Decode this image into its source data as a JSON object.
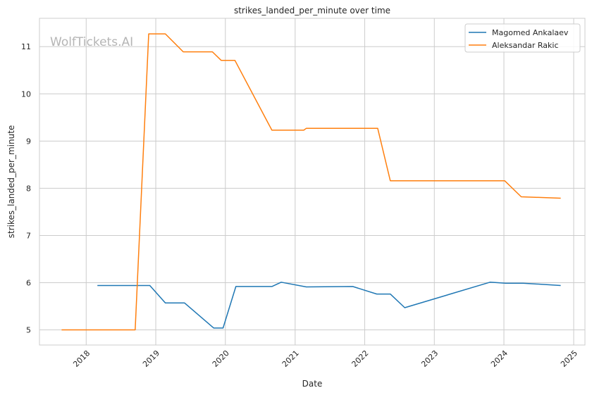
{
  "watermark": "WolfTickets.AI",
  "chart_data": {
    "type": "line",
    "title": "strikes_landed_per_minute over time",
    "xlabel": "Date",
    "ylabel": "strikes_landed_per_minute",
    "x_axis_kind": "date",
    "xlim": [
      "2017-05-01",
      "2025-03-01"
    ],
    "ylim": [
      4.68,
      11.6
    ],
    "x_ticks": [
      "2018",
      "2019",
      "2020",
      "2021",
      "2022",
      "2023",
      "2024",
      "2025"
    ],
    "y_ticks": [
      5,
      6,
      7,
      8,
      9,
      10,
      11
    ],
    "grid": true,
    "legend_position": "top-right",
    "series": [
      {
        "name": "Magomed Ankalaev",
        "color": "#1f77b4",
        "points": [
          {
            "x": "2018-03-01",
            "y": 5.94
          },
          {
            "x": "2018-12-01",
            "y": 5.94
          },
          {
            "x": "2019-02-20",
            "y": 5.57
          },
          {
            "x": "2019-06-01",
            "y": 5.57
          },
          {
            "x": "2019-11-01",
            "y": 5.04
          },
          {
            "x": "2019-12-20",
            "y": 5.04
          },
          {
            "x": "2020-02-25",
            "y": 5.92
          },
          {
            "x": "2020-09-01",
            "y": 5.92
          },
          {
            "x": "2020-10-20",
            "y": 6.01
          },
          {
            "x": "2021-03-01",
            "y": 5.91
          },
          {
            "x": "2021-10-30",
            "y": 5.92
          },
          {
            "x": "2022-03-05",
            "y": 5.76
          },
          {
            "x": "2022-05-15",
            "y": 5.76
          },
          {
            "x": "2022-07-30",
            "y": 5.47
          },
          {
            "x": "2023-10-20",
            "y": 6.01
          },
          {
            "x": "2024-01-10",
            "y": 5.99
          },
          {
            "x": "2024-04-10",
            "y": 5.99
          },
          {
            "x": "2024-10-25",
            "y": 5.94
          }
        ]
      },
      {
        "name": "Aleksandar Rakic",
        "color": "#ff7f0e",
        "points": [
          {
            "x": "2017-08-25",
            "y": 5.0
          },
          {
            "x": "2018-09-15",
            "y": 5.0
          },
          {
            "x": "2018-11-25",
            "y": 11.27
          },
          {
            "x": "2019-02-20",
            "y": 11.27
          },
          {
            "x": "2019-05-25",
            "y": 10.89
          },
          {
            "x": "2019-10-25",
            "y": 10.89
          },
          {
            "x": "2019-12-10",
            "y": 10.71
          },
          {
            "x": "2020-02-20",
            "y": 10.71
          },
          {
            "x": "2020-09-01",
            "y": 9.23
          },
          {
            "x": "2021-02-15",
            "y": 9.23
          },
          {
            "x": "2021-03-01",
            "y": 9.27
          },
          {
            "x": "2022-03-10",
            "y": 9.27
          },
          {
            "x": "2022-05-15",
            "y": 8.16
          },
          {
            "x": "2024-01-05",
            "y": 8.16
          },
          {
            "x": "2024-04-01",
            "y": 7.82
          },
          {
            "x": "2024-10-25",
            "y": 7.79
          }
        ]
      }
    ]
  }
}
